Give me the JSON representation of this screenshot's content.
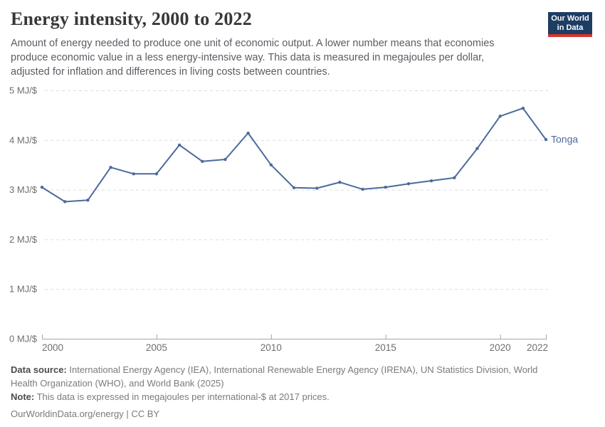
{
  "header": {
    "title": "Energy intensity, 2000 to 2022",
    "subtitle": "Amount of energy needed to produce one unit of economic output. A lower number means that economies produce economic value in a less energy-intensive way. This data is measured in megajoules per dollar, adjusted for inflation and differences in living costs between countries.",
    "logo_line1": "Our World",
    "logo_line2": "in Data"
  },
  "footer": {
    "data_source_label": "Data source:",
    "data_source_text": " International Energy Agency (IEA), International Renewable Energy Agency (IRENA), UN Statistics Division, World Health Organization (WHO), and World Bank (2025)",
    "note_label": "Note:",
    "note_text": " This data is expressed in megajoules per international-$ at 2017 prices.",
    "citation": "OurWorldinData.org/energy | CC BY"
  },
  "colors": {
    "line": "#4C6A9C",
    "gridline": "#dcdcdc",
    "axis": "#a5a5a5",
    "tick_label": "#6e6e6e",
    "logo_navy": "#1d3d63",
    "logo_red": "#d7352c"
  },
  "chart_data": {
    "type": "line",
    "title": "Energy intensity, 2000 to 2022",
    "unit": "MJ/$",
    "series": [
      {
        "name": "Tonga",
        "x": [
          2000,
          2001,
          2002,
          2003,
          2004,
          2005,
          2006,
          2007,
          2008,
          2009,
          2010,
          2011,
          2012,
          2013,
          2014,
          2015,
          2016,
          2017,
          2018,
          2019,
          2020,
          2021,
          2022
        ],
        "values": [
          3.05,
          2.76,
          2.79,
          3.45,
          3.32,
          3.32,
          3.9,
          3.57,
          3.61,
          4.14,
          3.5,
          3.04,
          3.03,
          3.15,
          3.01,
          3.05,
          3.12,
          3.18,
          3.24,
          3.83,
          4.48,
          4.64,
          4.01
        ]
      }
    ],
    "xlim": [
      2000,
      2022
    ],
    "ylim": [
      0,
      5
    ],
    "xticks": [
      2000,
      2005,
      2010,
      2015,
      2020,
      2022
    ],
    "yticks": [
      0,
      1,
      2,
      3,
      4,
      5
    ],
    "ytick_label_suffix": " MJ/$",
    "grid": "horizontal-dashed",
    "legend_position": "end-of-line-label"
  }
}
